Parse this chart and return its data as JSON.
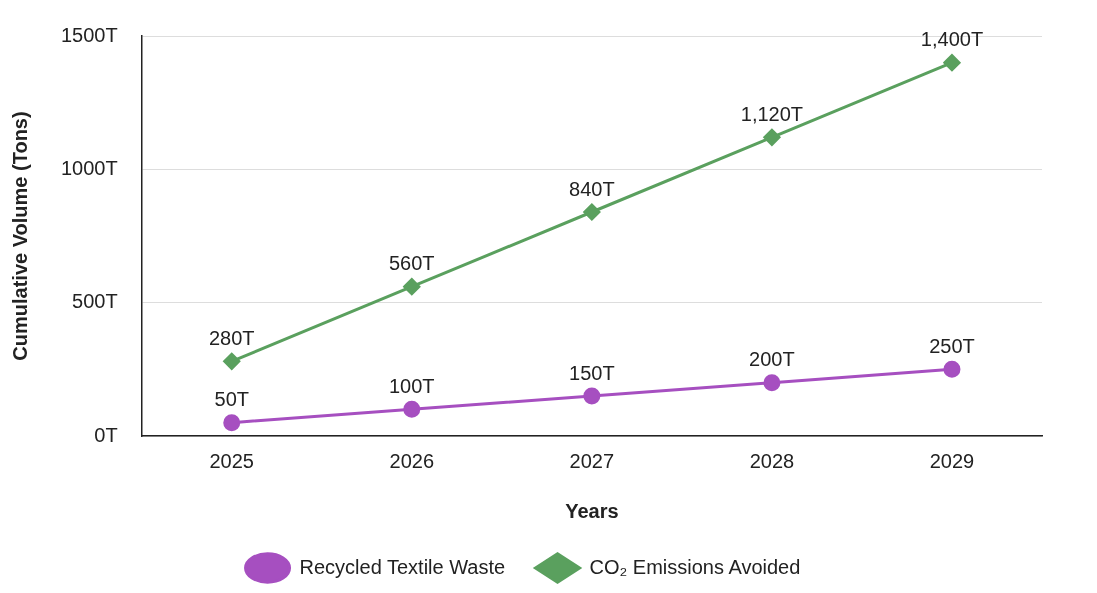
{
  "chart_data": {
    "type": "line",
    "xlabel": "Years",
    "ylabel": "Cumulative Volume (Tons)",
    "categories": [
      "2025",
      "2026",
      "2027",
      "2028",
      "2029"
    ],
    "series": [
      {
        "name": "Recycled Textile Waste",
        "color": "#a64fc0",
        "marker": "circle",
        "values": [
          50,
          100,
          150,
          200,
          250
        ],
        "value_labels": [
          "50T",
          "100T",
          "150T",
          "200T",
          "250T"
        ]
      },
      {
        "name": "CO₂ Emissions Avoided",
        "color": "#5aa05e",
        "marker": "diamond",
        "values": [
          280,
          560,
          840,
          1120,
          1400
        ],
        "value_labels": [
          "280T",
          "560T",
          "840T",
          "1,120T",
          "1,400T"
        ]
      }
    ],
    "ylim": [
      0,
      1500
    ],
    "yticks": [
      {
        "value": 0,
        "label": "0T"
      },
      {
        "value": 500,
        "label": "500T"
      },
      {
        "value": 1000,
        "label": "1000T"
      },
      {
        "value": 1500,
        "label": "1500T"
      }
    ],
    "grid": "y",
    "legend": "bottom",
    "line_style": "solid"
  }
}
